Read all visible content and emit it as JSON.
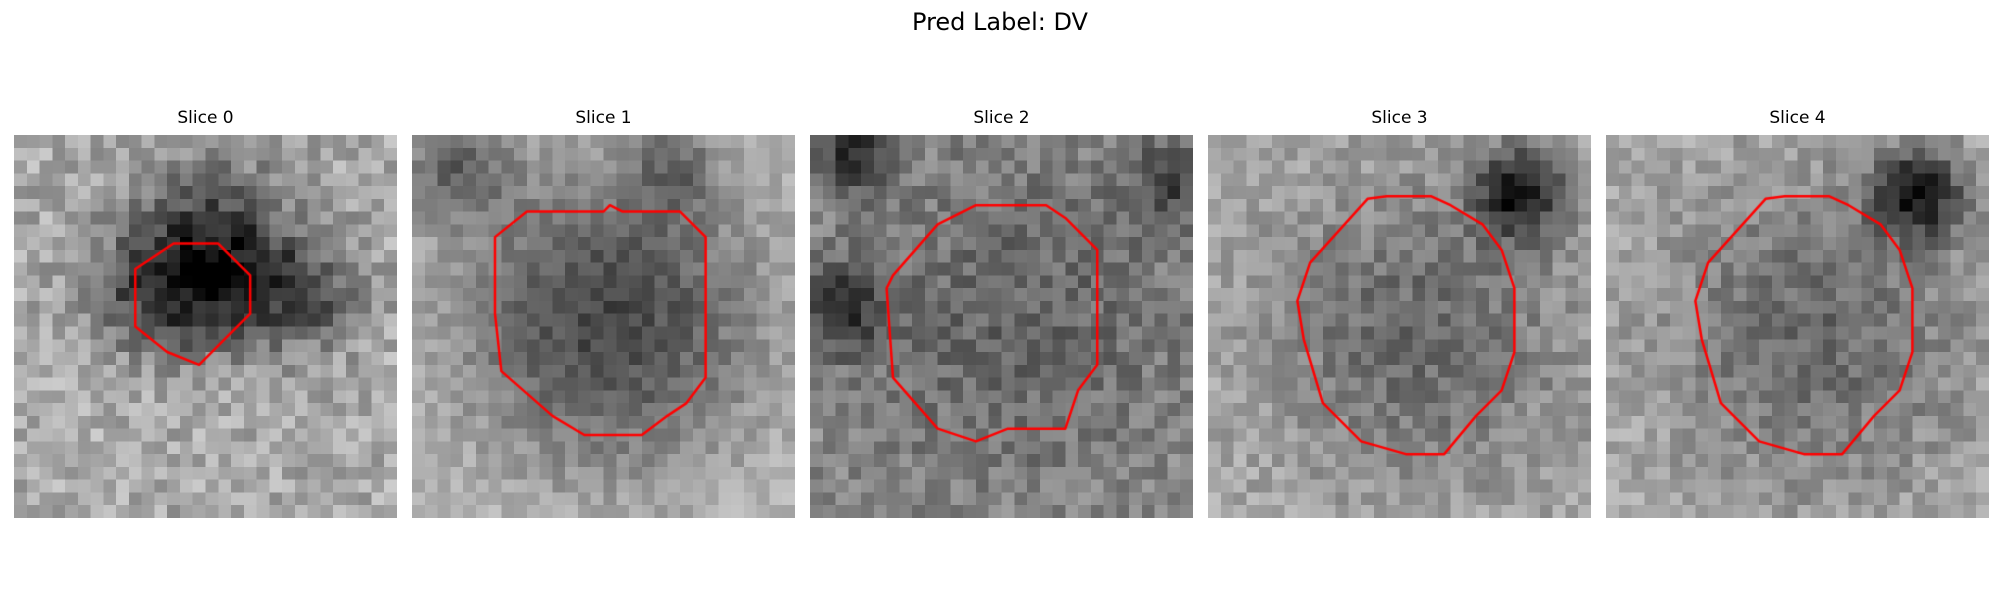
{
  "figure": {
    "title": "Pred Label: DV"
  },
  "panels": [
    {
      "title": "Slice 0",
      "image_description": "grayscale noisy patch with small dark blob; small red octagon outline around it",
      "contour_color": "#ff0000"
    },
    {
      "title": "Slice 1",
      "image_description": "grayscale patch with large dark circular region; large red octagon outline",
      "contour_color": "#ff0000"
    },
    {
      "title": "Slice 2",
      "image_description": "grayscale patch with mid-dark circular region; large red octagon outline",
      "contour_color": "#ff0000"
    },
    {
      "title": "Slice 3",
      "image_description": "grayscale patch with gray circular region and dark spot top-right; large red octagon outline",
      "contour_color": "#ff0000"
    },
    {
      "title": "Slice 4",
      "image_description": "grayscale patch with gray circular region and dark spot top-right; large red octagon outline",
      "contour_color": "#ff0000"
    }
  ]
}
